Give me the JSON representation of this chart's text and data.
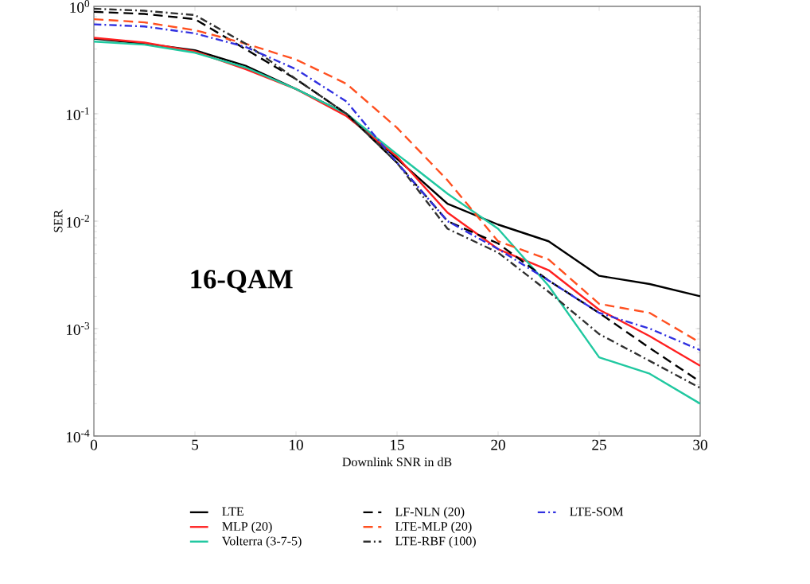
{
  "chart_data": {
    "type": "line",
    "xlabel": "Downlink SNR in dB",
    "ylabel": "SER",
    "log": "y",
    "annotations": [
      "16-QAM"
    ],
    "x": [
      0,
      2.5,
      5,
      7.5,
      10,
      12.5,
      15,
      17.5,
      20,
      22.5,
      25,
      27.5,
      30
    ],
    "xlim": [
      0,
      30
    ],
    "xticks": [
      0,
      5,
      10,
      15,
      20,
      25,
      30
    ],
    "ylim": [
      0.0001,
      1
    ],
    "yticks": [
      {
        "value": 0.0001,
        "label": "10$^{-4}$"
      },
      {
        "value": 0.001,
        "label": "10$^{-3}$"
      },
      {
        "value": 0.01,
        "label": "10$^{-2}$"
      },
      {
        "value": 0.1,
        "label": "10$^{-1}$"
      },
      {
        "value": 1,
        "label": "10$^{0}$"
      }
    ],
    "grid": false,
    "legend": "bottom",
    "series": [
      {
        "name": "LTE",
        "color": "#000000",
        "line_style": "solid",
        "values": [
          0.5,
          0.45,
          0.39,
          0.28,
          0.17,
          0.1,
          0.038,
          0.0145,
          0.0093,
          0.0065,
          0.0031,
          0.0026,
          0.002
        ]
      },
      {
        "name": "MLP (20)",
        "color": "#ff2020",
        "line_style": "solid",
        "values": [
          0.51,
          0.46,
          0.38,
          0.26,
          0.17,
          0.095,
          0.04,
          0.012,
          0.0055,
          0.0035,
          0.0015,
          0.00085,
          0.00045
        ]
      },
      {
        "name": "Volterra (3-7-5)",
        "color": "#20c8a0",
        "line_style": "solid",
        "values": [
          0.47,
          0.44,
          0.37,
          0.27,
          0.17,
          0.1,
          0.042,
          0.018,
          0.0085,
          0.0025,
          0.00054,
          0.00038,
          0.0002
        ]
      },
      {
        "name": "LF-NLN (20)",
        "color": "#000000",
        "line_style": "dashed",
        "values": [
          0.89,
          0.85,
          0.76,
          0.4,
          0.21,
          0.1,
          0.035,
          0.01,
          0.0062,
          0.0028,
          0.0014,
          0.00066,
          0.00032
        ]
      },
      {
        "name": "LTE-MLP (20)",
        "color": "#ff5020",
        "line_style": "dashed",
        "values": [
          0.76,
          0.71,
          0.6,
          0.45,
          0.32,
          0.19,
          0.074,
          0.024,
          0.0065,
          0.0044,
          0.0017,
          0.0014,
          0.00074
        ]
      },
      {
        "name": "LTE-RBF (100)",
        "color": "#303030",
        "line_style": "dashdot",
        "values": [
          0.95,
          0.91,
          0.83,
          0.45,
          0.21,
          0.1,
          0.035,
          0.0085,
          0.0051,
          0.0022,
          0.00089,
          0.0005,
          0.00028
        ]
      },
      {
        "name": "LTE-SOM",
        "color": "#3030e0",
        "line_style": "dashdot",
        "values": [
          0.68,
          0.65,
          0.56,
          0.42,
          0.26,
          0.13,
          0.035,
          0.01,
          0.0055,
          0.0028,
          0.0014,
          0.001,
          0.00063
        ]
      }
    ]
  }
}
